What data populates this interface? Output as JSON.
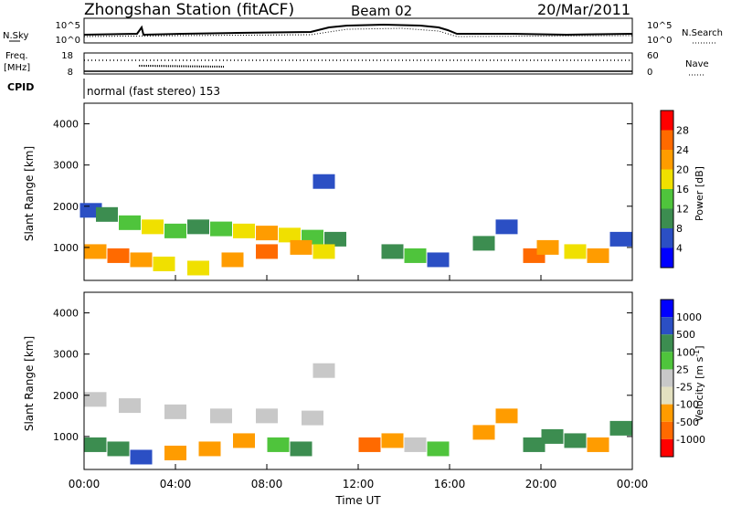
{
  "header": {
    "station": "Zhongshan Station (fitACF)",
    "beam": "Beam 02",
    "date": "20/Mar/2011"
  },
  "top_panel": {
    "left_label": "N.Sky",
    "right_label": "N.Search",
    "left_ticks": [
      "10^5",
      "10^0"
    ],
    "right_ticks": [
      "10^5",
      "10^0"
    ]
  },
  "freq_panel": {
    "left_label_1": "Freq.",
    "left_label_2": "[MHz]",
    "left_ticks": [
      "18",
      "8"
    ],
    "right_ticks": [
      "60",
      "0"
    ],
    "right_label": "Nave"
  },
  "cpid": {
    "label": "CPID",
    "text": "normal (fast stereo) 153"
  },
  "colors": {
    "power": [
      "#0000ff",
      "#2b4fc4",
      "#3c8d50",
      "#4fc43c",
      "#f0e000",
      "#ff9c00",
      "#ff6a00",
      "#ff0000"
    ],
    "velocity": [
      "#ff0000",
      "#ff6a00",
      "#ff9c00",
      "#e3e0c0",
      "#c8c8c8",
      "#4fc43c",
      "#3c8d50",
      "#2b4fc4",
      "#0000ff"
    ]
  },
  "chart_data": [
    {
      "type": "heatmap",
      "title": "Power",
      "ylabel": "Slant Range [km]",
      "ylim": [
        200,
        4500
      ],
      "yticks": [
        "1000",
        "2000",
        "3000",
        "4000"
      ],
      "colorbar_label": "Power [dB]",
      "colorbar_ticks": [
        "4",
        "8",
        "12",
        "16",
        "20",
        "24",
        "28"
      ],
      "cells": [
        {
          "t": 0.3,
          "r": 1900,
          "v": 8
        },
        {
          "t": 1.0,
          "r": 1800,
          "v": 12
        },
        {
          "t": 2.0,
          "r": 1600,
          "v": 16
        },
        {
          "t": 3.0,
          "r": 1500,
          "v": 20
        },
        {
          "t": 4.0,
          "r": 1400,
          "v": 16
        },
        {
          "t": 5.0,
          "r": 1500,
          "v": 12
        },
        {
          "t": 6.0,
          "r": 1450,
          "v": 16
        },
        {
          "t": 7.0,
          "r": 1400,
          "v": 20
        },
        {
          "t": 8.0,
          "r": 1350,
          "v": 24
        },
        {
          "t": 9.0,
          "r": 1300,
          "v": 20
        },
        {
          "t": 10.0,
          "r": 1250,
          "v": 16
        },
        {
          "t": 11.0,
          "r": 1200,
          "v": 12
        },
        {
          "t": 0.5,
          "r": 900,
          "v": 24
        },
        {
          "t": 1.5,
          "r": 800,
          "v": 28
        },
        {
          "t": 2.5,
          "r": 700,
          "v": 24
        },
        {
          "t": 3.5,
          "r": 600,
          "v": 20
        },
        {
          "t": 5.0,
          "r": 500,
          "v": 20
        },
        {
          "t": 6.5,
          "r": 700,
          "v": 24
        },
        {
          "t": 8.0,
          "r": 900,
          "v": 28
        },
        {
          "t": 9.5,
          "r": 1000,
          "v": 24
        },
        {
          "t": 10.5,
          "r": 900,
          "v": 20
        },
        {
          "t": 10.5,
          "r": 2600,
          "v": 8
        },
        {
          "t": 13.5,
          "r": 900,
          "v": 12
        },
        {
          "t": 14.5,
          "r": 800,
          "v": 16
        },
        {
          "t": 15.5,
          "r": 700,
          "v": 8
        },
        {
          "t": 17.5,
          "r": 1100,
          "v": 12
        },
        {
          "t": 18.5,
          "r": 1500,
          "v": 8
        },
        {
          "t": 19.7,
          "r": 800,
          "v": 28
        },
        {
          "t": 20.3,
          "r": 1000,
          "v": 24
        },
        {
          "t": 21.5,
          "r": 900,
          "v": 20
        },
        {
          "t": 22.5,
          "r": 800,
          "v": 24
        },
        {
          "t": 23.5,
          "r": 1200,
          "v": 8
        }
      ]
    },
    {
      "type": "heatmap",
      "title": "Velocity",
      "ylabel": "Slant Range [km]",
      "ylim": [
        200,
        4500
      ],
      "yticks": [
        "1000",
        "2000",
        "3000",
        "4000"
      ],
      "xticks": [
        "00:00",
        "04:00",
        "08:00",
        "12:00",
        "16:00",
        "20:00",
        "00:00"
      ],
      "xlabel": "Time UT",
      "colorbar_label": "Velocity [m s",
      "colorbar_label_sup": "-1",
      "colorbar_label_end": "]",
      "colorbar_ticks": [
        "-1000",
        "-500",
        "-100",
        "-25",
        "25",
        "100",
        "500",
        "1000"
      ],
      "cells": [
        {
          "t": 0.5,
          "r": 1900,
          "v": 0
        },
        {
          "t": 2.0,
          "r": 1750,
          "v": 0
        },
        {
          "t": 4.0,
          "r": 1600,
          "v": 0
        },
        {
          "t": 6.0,
          "r": 1500,
          "v": 0
        },
        {
          "t": 8.0,
          "r": 1500,
          "v": 0
        },
        {
          "t": 10.0,
          "r": 1450,
          "v": 0
        },
        {
          "t": 0.5,
          "r": 800,
          "v": 200
        },
        {
          "t": 1.5,
          "r": 700,
          "v": 200
        },
        {
          "t": 2.5,
          "r": 500,
          "v": 800
        },
        {
          "t": 4.0,
          "r": 600,
          "v": -200
        },
        {
          "t": 5.5,
          "r": 700,
          "v": -200
        },
        {
          "t": 7.0,
          "r": 900,
          "v": -200
        },
        {
          "t": 8.5,
          "r": 800,
          "v": 50
        },
        {
          "t": 9.5,
          "r": 700,
          "v": 200
        },
        {
          "t": 10.5,
          "r": 2600,
          "v": 0
        },
        {
          "t": 12.5,
          "r": 800,
          "v": -800
        },
        {
          "t": 13.5,
          "r": 900,
          "v": -200
        },
        {
          "t": 14.5,
          "r": 800,
          "v": 0
        },
        {
          "t": 15.5,
          "r": 700,
          "v": 50
        },
        {
          "t": 17.5,
          "r": 1100,
          "v": -200
        },
        {
          "t": 18.5,
          "r": 1500,
          "v": -200
        },
        {
          "t": 19.7,
          "r": 800,
          "v": 200
        },
        {
          "t": 20.5,
          "r": 1000,
          "v": 200
        },
        {
          "t": 21.5,
          "r": 900,
          "v": 200
        },
        {
          "t": 22.5,
          "r": 800,
          "v": -200
        },
        {
          "t": 23.5,
          "r": 1200,
          "v": 200
        }
      ]
    }
  ]
}
